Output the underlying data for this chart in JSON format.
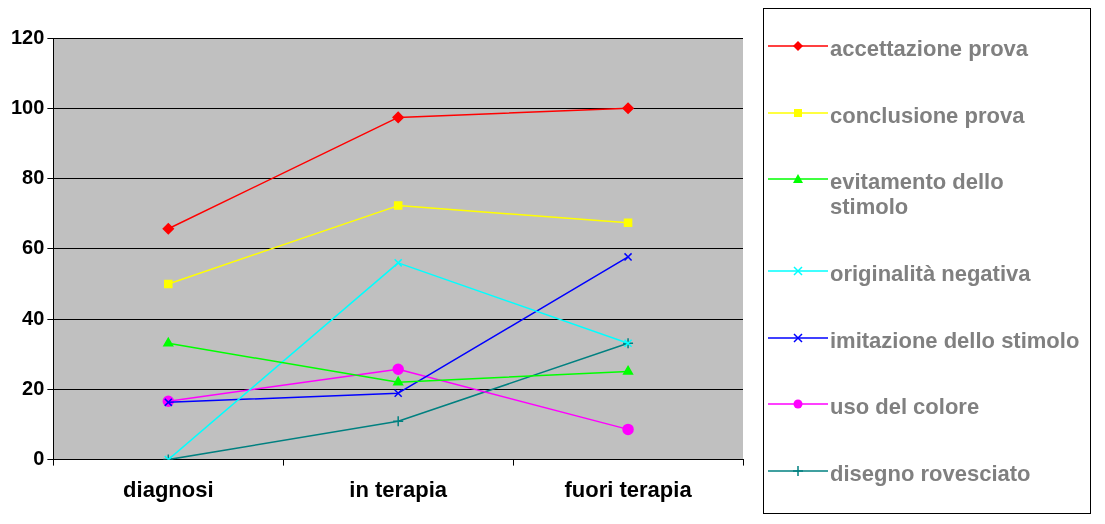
{
  "chart_data": {
    "type": "line",
    "categories": [
      "diagnosi",
      "in terapia",
      "fuori terapia"
    ],
    "series": [
      {
        "name": "accettazione prova",
        "color": "#ff0000",
        "marker": "diamond",
        "values": [
          65.7,
          97.4,
          100
        ]
      },
      {
        "name": "conclusione prova",
        "color": "#ffff00",
        "marker": "square",
        "values": [
          50,
          72.3,
          67.4
        ]
      },
      {
        "name": "evitamento dello stimolo",
        "color": "#00ff00",
        "marker": "triangle",
        "values": [
          33.1,
          22,
          25.1
        ]
      },
      {
        "name": "originalità negativa",
        "color": "#00ffff",
        "marker": "cross",
        "values": [
          0,
          56,
          33.1
        ]
      },
      {
        "name": "imitazione dello stimolo",
        "color": "#0000ff",
        "marker": "cross",
        "values": [
          16.3,
          18.9,
          57.7
        ]
      },
      {
        "name": "uso del colore",
        "color": "#ff00ff",
        "marker": "circle",
        "values": [
          16.6,
          25.7,
          8.6
        ]
      },
      {
        "name": "disegno rovesciato",
        "color": "#008080",
        "marker": "plus",
        "values": [
          0,
          10.9,
          33.1
        ]
      }
    ],
    "ylim": [
      0,
      120
    ],
    "yticks": [
      0,
      20,
      40,
      60,
      80,
      100,
      120
    ],
    "grid": "y",
    "legend": "right",
    "line_style": "solid"
  }
}
